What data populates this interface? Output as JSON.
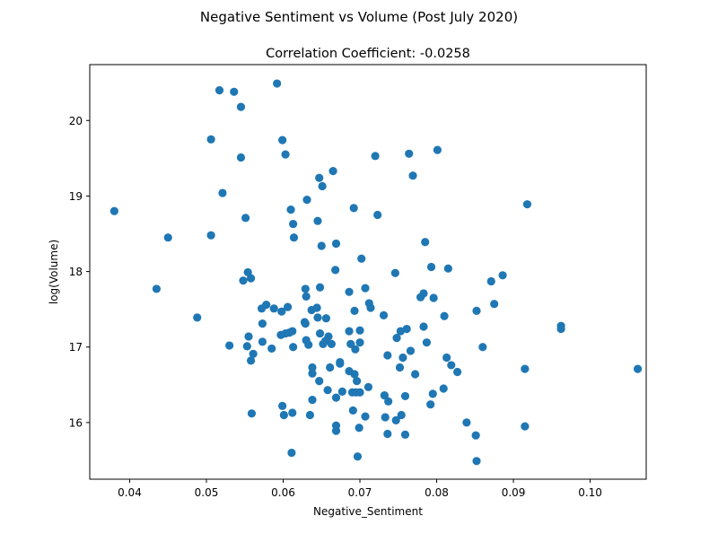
{
  "chart_data": {
    "type": "scatter",
    "suptitle": "Negative Sentiment vs Volume (Post July 2020)",
    "title": "Correlation Coefficient: -0.0258",
    "xlabel": "Negative_Sentiment",
    "ylabel": "log(Volume)",
    "xlim": [
      0.0348,
      0.1073
    ],
    "ylim": [
      15.25,
      20.74
    ],
    "xticks": [
      0.04,
      0.05,
      0.06,
      0.07,
      0.08,
      0.09,
      0.1
    ],
    "xtick_labels": [
      "0.04",
      "0.05",
      "0.06",
      "0.07",
      "0.08",
      "0.09",
      "0.10"
    ],
    "yticks": [
      16,
      17,
      18,
      19,
      20
    ],
    "ytick_labels": [
      "16",
      "17",
      "18",
      "19",
      "20"
    ],
    "grid": false,
    "marker_color": "#1f77b4",
    "points": [
      [
        0.0517,
        20.4
      ],
      [
        0.0536,
        20.38
      ],
      [
        0.0592,
        20.49
      ],
      [
        0.0545,
        20.18
      ],
      [
        0.0506,
        19.75
      ],
      [
        0.0599,
        19.74
      ],
      [
        0.0545,
        19.51
      ],
      [
        0.0603,
        19.55
      ],
      [
        0.0665,
        19.33
      ],
      [
        0.0647,
        19.24
      ],
      [
        0.0651,
        19.13
      ],
      [
        0.072,
        19.53
      ],
      [
        0.0764,
        19.56
      ],
      [
        0.0801,
        19.61
      ],
      [
        0.0769,
        19.27
      ],
      [
        0.0521,
        19.04
      ],
      [
        0.0631,
        18.95
      ],
      [
        0.0918,
        18.89
      ],
      [
        0.038,
        18.8
      ],
      [
        0.0551,
        18.71
      ],
      [
        0.061,
        18.82
      ],
      [
        0.0613,
        18.63
      ],
      [
        0.0645,
        18.67
      ],
      [
        0.0692,
        18.84
      ],
      [
        0.0723,
        18.75
      ],
      [
        0.045,
        18.45
      ],
      [
        0.0506,
        18.48
      ],
      [
        0.0614,
        18.45
      ],
      [
        0.065,
        18.34
      ],
      [
        0.0669,
        18.37
      ],
      [
        0.0785,
        18.39
      ],
      [
        0.0702,
        18.17
      ],
      [
        0.0554,
        17.99
      ],
      [
        0.0558,
        17.91
      ],
      [
        0.0548,
        17.88
      ],
      [
        0.0668,
        18.02
      ],
      [
        0.0746,
        17.98
      ],
      [
        0.0793,
        18.06
      ],
      [
        0.0815,
        18.04
      ],
      [
        0.0886,
        17.95
      ],
      [
        0.0871,
        17.87
      ],
      [
        0.0435,
        17.77
      ],
      [
        0.0629,
        17.77
      ],
      [
        0.0648,
        17.79
      ],
      [
        0.0686,
        17.73
      ],
      [
        0.0707,
        17.78
      ],
      [
        0.063,
        17.67
      ],
      [
        0.0578,
        17.56
      ],
      [
        0.0572,
        17.51
      ],
      [
        0.0588,
        17.51
      ],
      [
        0.0598,
        17.47
      ],
      [
        0.0606,
        17.53
      ],
      [
        0.0637,
        17.49
      ],
      [
        0.0644,
        17.52
      ],
      [
        0.0712,
        17.58
      ],
      [
        0.0714,
        17.52
      ],
      [
        0.0693,
        17.48
      ],
      [
        0.0731,
        17.42
      ],
      [
        0.0779,
        17.66
      ],
      [
        0.0783,
        17.71
      ],
      [
        0.0796,
        17.65
      ],
      [
        0.0875,
        17.57
      ],
      [
        0.0852,
        17.48
      ],
      [
        0.0488,
        17.39
      ],
      [
        0.0573,
        17.31
      ],
      [
        0.0645,
        17.39
      ],
      [
        0.0656,
        17.38
      ],
      [
        0.0628,
        17.33
      ],
      [
        0.0629,
        17.31
      ],
      [
        0.0555,
        17.14
      ],
      [
        0.0597,
        17.16
      ],
      [
        0.0603,
        17.18
      ],
      [
        0.0612,
        17.21
      ],
      [
        0.0608,
        17.19
      ],
      [
        0.0648,
        17.18
      ],
      [
        0.0659,
        17.14
      ],
      [
        0.0686,
        17.21
      ],
      [
        0.07,
        17.22
      ],
      [
        0.063,
        17.09
      ],
      [
        0.0655,
        17.08
      ],
      [
        0.0652,
        17.04
      ],
      [
        0.0633,
        17.03
      ],
      [
        0.0663,
        17.04
      ],
      [
        0.0688,
        17.04
      ],
      [
        0.07,
        17.06
      ],
      [
        0.0694,
        16.97
      ],
      [
        0.0674,
        16.8
      ],
      [
        0.0674,
        16.78
      ],
      [
        0.0753,
        17.21
      ],
      [
        0.0761,
        17.24
      ],
      [
        0.0748,
        17.12
      ],
      [
        0.0783,
        17.27
      ],
      [
        0.081,
        17.41
      ],
      [
        0.0787,
        17.06
      ],
      [
        0.0766,
        16.95
      ],
      [
        0.0736,
        16.89
      ],
      [
        0.0756,
        16.86
      ],
      [
        0.0752,
        16.73
      ],
      [
        0.0813,
        16.86
      ],
      [
        0.0819,
        16.76
      ],
      [
        0.0827,
        16.67
      ],
      [
        0.086,
        17.0
      ],
      [
        0.0962,
        17.28
      ],
      [
        0.0962,
        17.24
      ],
      [
        0.1062,
        16.71
      ],
      [
        0.0915,
        16.71
      ],
      [
        0.053,
        17.02
      ],
      [
        0.0553,
        17.01
      ],
      [
        0.0573,
        17.07
      ],
      [
        0.0561,
        16.91
      ],
      [
        0.0558,
        16.82
      ],
      [
        0.0585,
        16.98
      ],
      [
        0.0613,
        17.0
      ],
      [
        0.0638,
        16.73
      ],
      [
        0.0638,
        16.65
      ],
      [
        0.0647,
        16.55
      ],
      [
        0.0658,
        16.43
      ],
      [
        0.0661,
        16.73
      ],
      [
        0.0686,
        16.68
      ],
      [
        0.0693,
        16.64
      ],
      [
        0.0696,
        16.55
      ],
      [
        0.0711,
        16.47
      ],
      [
        0.0677,
        16.41
      ],
      [
        0.069,
        16.4
      ],
      [
        0.0695,
        16.4
      ],
      [
        0.07,
        16.4
      ],
      [
        0.0669,
        16.33
      ],
      [
        0.0732,
        16.36
      ],
      [
        0.0737,
        16.28
      ],
      [
        0.0759,
        16.35
      ],
      [
        0.0772,
        16.64
      ],
      [
        0.0795,
        16.38
      ],
      [
        0.0809,
        16.45
      ],
      [
        0.0792,
        16.24
      ],
      [
        0.0638,
        16.3
      ],
      [
        0.0599,
        16.22
      ],
      [
        0.0559,
        16.12
      ],
      [
        0.0601,
        16.1
      ],
      [
        0.0612,
        16.13
      ],
      [
        0.0635,
        16.1
      ],
      [
        0.0669,
        15.96
      ],
      [
        0.0669,
        15.89
      ],
      [
        0.0691,
        16.16
      ],
      [
        0.0707,
        16.08
      ],
      [
        0.0733,
        16.07
      ],
      [
        0.0747,
        16.03
      ],
      [
        0.0754,
        16.1
      ],
      [
        0.0839,
        16.0
      ],
      [
        0.0915,
        15.95
      ],
      [
        0.0699,
        15.93
      ],
      [
        0.0736,
        15.85
      ],
      [
        0.0759,
        15.84
      ],
      [
        0.0851,
        15.83
      ],
      [
        0.0611,
        15.6
      ],
      [
        0.0697,
        15.55
      ],
      [
        0.0852,
        15.49
      ]
    ]
  }
}
